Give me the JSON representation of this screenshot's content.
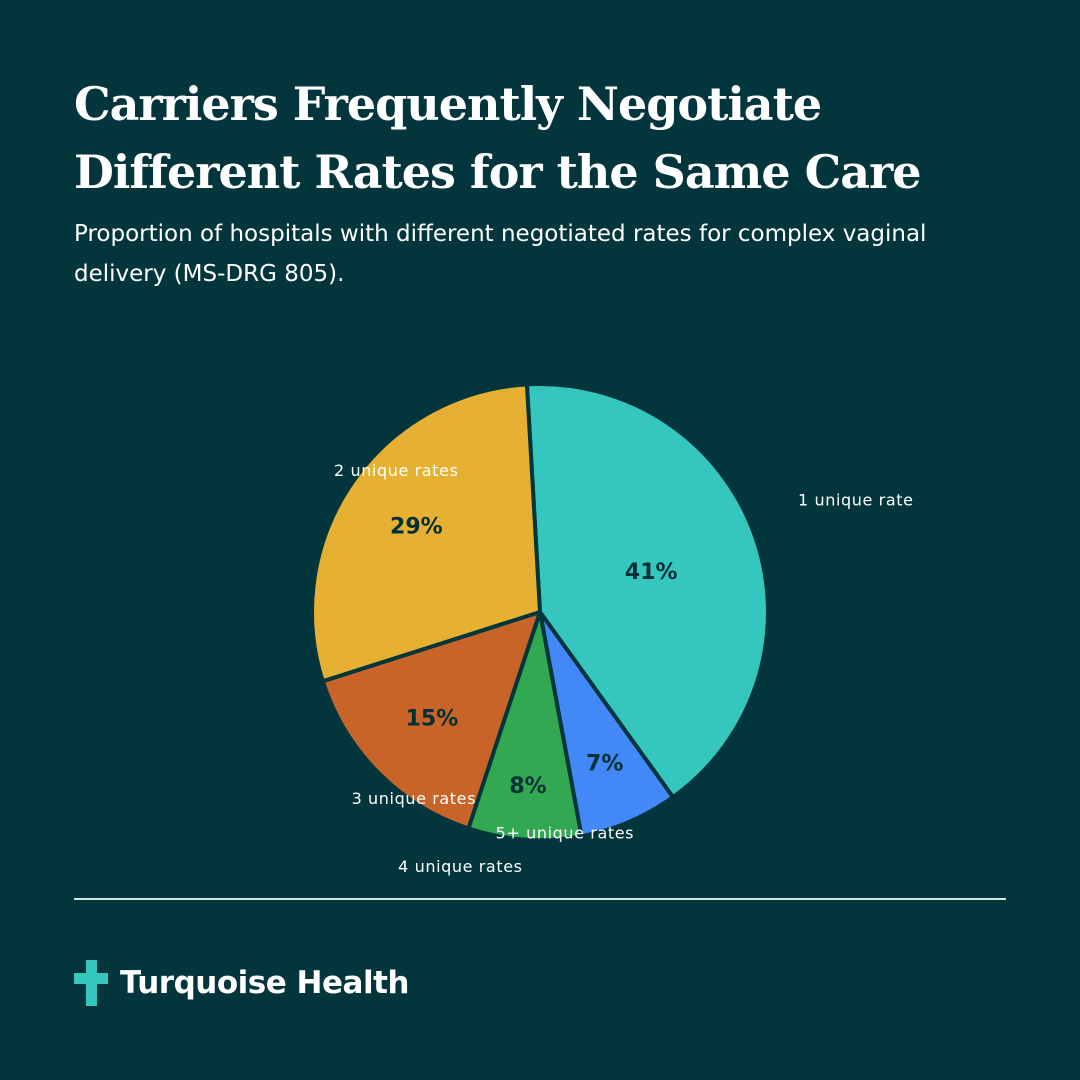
{
  "header": {
    "title": "Carriers Frequently Negotiate Different Rates for the Same Care",
    "subtitle": "Proportion of hospitals with different negotiated rates for complex vaginal delivery (MS-DRG 805)."
  },
  "brand": {
    "name": "Turquoise Health",
    "icon": "plus-cross-icon",
    "icon_color": "#35c6bd"
  },
  "colors": {
    "background": "#02353c",
    "slice_border": "#02353c",
    "label_text": "#ffffff",
    "percent_text": "#032f36"
  },
  "chart_data": {
    "type": "pie",
    "slices": [
      {
        "label": "1 unique rate",
        "value": 41,
        "display": "41%",
        "color": "#35c6bd"
      },
      {
        "label": "5+ unique rates",
        "value": 7,
        "display": "7%",
        "color": "#4289f7"
      },
      {
        "label": "4 unique rates",
        "value": 8,
        "display": "8%",
        "color": "#33a853"
      },
      {
        "label": "3 unique rates",
        "value": 15,
        "display": "15%",
        "color": "#c86428"
      },
      {
        "label": "2 unique rates",
        "value": 29,
        "display": "29%",
        "color": "#e6b033"
      }
    ]
  }
}
